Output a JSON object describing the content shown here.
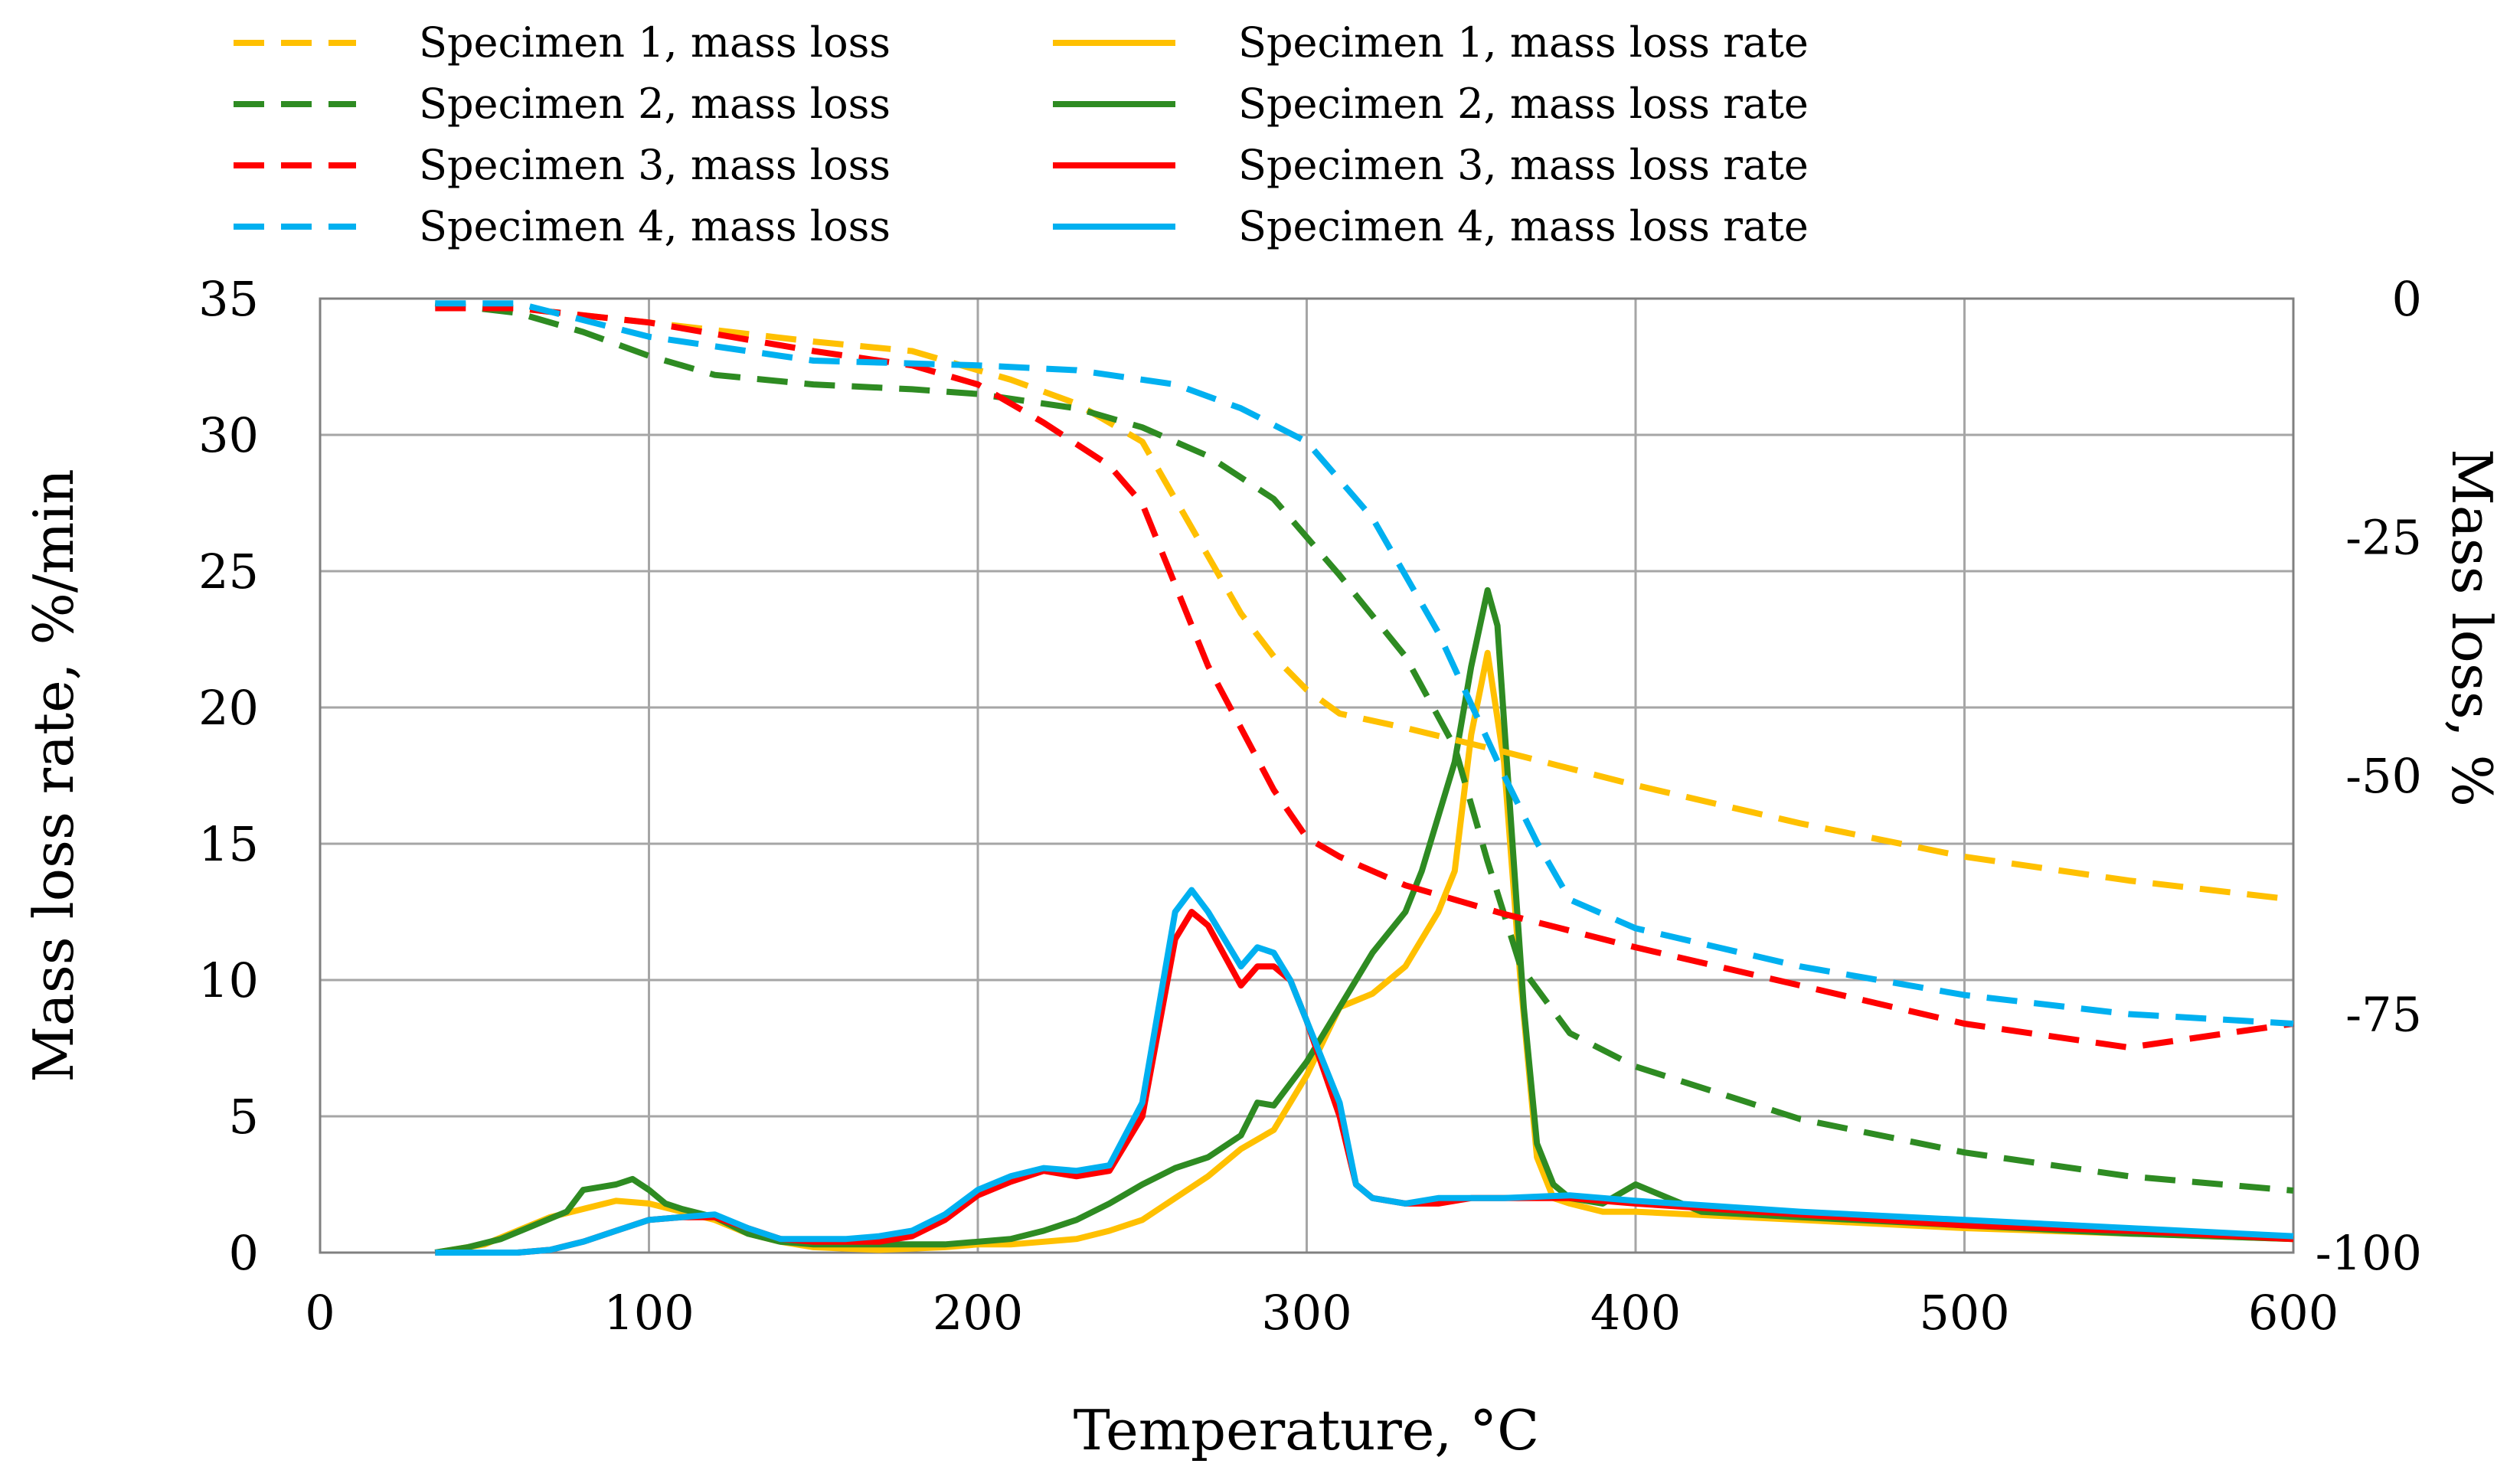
{
  "chart_data": {
    "type": "line",
    "xlabel": "Temperature, °C",
    "ylabel_left": "Mass loss rate, %/min",
    "ylabel_right": "Mass loss, %",
    "xlim": [
      0,
      600
    ],
    "ylim_left": [
      0,
      35
    ],
    "ylim_right": [
      -100,
      0
    ],
    "x_ticks": [
      "0",
      "100",
      "200",
      "300",
      "400",
      "500",
      "600"
    ],
    "y_left_ticks": [
      "0",
      "5",
      "10",
      "15",
      "20",
      "25",
      "30",
      "35"
    ],
    "y_right_ticks": [
      "-100",
      "-75",
      "-50",
      "-25",
      "0"
    ],
    "grid": true,
    "legend_position": "top",
    "series": [
      {
        "name": "Specimen 1, mass loss",
        "axis": "right",
        "style": "dashed",
        "color": "#FFC000",
        "points": [
          [
            35,
            -0.5
          ],
          [
            60,
            -1
          ],
          [
            100,
            -2.5
          ],
          [
            150,
            -4.5
          ],
          [
            180,
            -5.5
          ],
          [
            210,
            -8.5
          ],
          [
            230,
            -11
          ],
          [
            250,
            -15
          ],
          [
            260,
            -21
          ],
          [
            270,
            -27
          ],
          [
            280,
            -33
          ],
          [
            290,
            -37.5
          ],
          [
            300,
            -41
          ],
          [
            310,
            -43.5
          ],
          [
            330,
            -45
          ],
          [
            360,
            -47.5
          ],
          [
            400,
            -51
          ],
          [
            450,
            -55
          ],
          [
            500,
            -58.5
          ],
          [
            550,
            -61
          ],
          [
            600,
            -63
          ]
        ]
      },
      {
        "name": "Specimen 2, mass loss",
        "axis": "right",
        "style": "dashed",
        "color": "#2E8B22",
        "points": [
          [
            35,
            -0.5
          ],
          [
            60,
            -1.5
          ],
          [
            80,
            -3.5
          ],
          [
            100,
            -6
          ],
          [
            120,
            -8
          ],
          [
            150,
            -9
          ],
          [
            180,
            -9.5
          ],
          [
            200,
            -10
          ],
          [
            230,
            -11.5
          ],
          [
            250,
            -13.5
          ],
          [
            270,
            -16.5
          ],
          [
            290,
            -21
          ],
          [
            310,
            -29
          ],
          [
            330,
            -37.5
          ],
          [
            345,
            -47
          ],
          [
            355,
            -59
          ],
          [
            365,
            -70
          ],
          [
            380,
            -77
          ],
          [
            400,
            -80.5
          ],
          [
            450,
            -86
          ],
          [
            500,
            -89.5
          ],
          [
            550,
            -92
          ],
          [
            600,
            -93.5
          ]
        ]
      },
      {
        "name": "Specimen 3, mass loss",
        "axis": "right",
        "style": "dashed",
        "color": "#FF0000",
        "points": [
          [
            35,
            -1
          ],
          [
            60,
            -1
          ],
          [
            100,
            -2.5
          ],
          [
            150,
            -5.5
          ],
          [
            180,
            -7
          ],
          [
            200,
            -9
          ],
          [
            220,
            -13
          ],
          [
            240,
            -17.5
          ],
          [
            250,
            -21.5
          ],
          [
            260,
            -30
          ],
          [
            270,
            -38.5
          ],
          [
            280,
            -45
          ],
          [
            290,
            -51.5
          ],
          [
            300,
            -56.5
          ],
          [
            310,
            -58.5
          ],
          [
            330,
            -61.5
          ],
          [
            360,
            -64.5
          ],
          [
            400,
            -68
          ],
          [
            450,
            -72
          ],
          [
            500,
            -76
          ],
          [
            550,
            -78.5
          ],
          [
            600,
            -76
          ]
        ]
      },
      {
        "name": "Specimen 4, mass loss",
        "axis": "right",
        "style": "dashed",
        "color": "#00B0F0",
        "points": [
          [
            35,
            -0.5
          ],
          [
            60,
            -0.5
          ],
          [
            100,
            -4
          ],
          [
            150,
            -6.5
          ],
          [
            200,
            -7
          ],
          [
            230,
            -7.5
          ],
          [
            260,
            -9
          ],
          [
            280,
            -11.5
          ],
          [
            300,
            -15
          ],
          [
            320,
            -23
          ],
          [
            340,
            -35
          ],
          [
            360,
            -50
          ],
          [
            370,
            -57
          ],
          [
            380,
            -63
          ],
          [
            400,
            -66
          ],
          [
            450,
            -70
          ],
          [
            500,
            -73
          ],
          [
            550,
            -75
          ],
          [
            600,
            -76
          ]
        ]
      },
      {
        "name": "Specimen 1, mass loss rate",
        "axis": "left",
        "style": "solid",
        "color": "#FFC000",
        "points": [
          [
            35,
            0
          ],
          [
            50,
            0.3
          ],
          [
            60,
            0.8
          ],
          [
            70,
            1.3
          ],
          [
            80,
            1.6
          ],
          [
            90,
            1.9
          ],
          [
            100,
            1.8
          ],
          [
            110,
            1.5
          ],
          [
            120,
            1.2
          ],
          [
            130,
            0.7
          ],
          [
            140,
            0.4
          ],
          [
            150,
            0.2
          ],
          [
            160,
            0.15
          ],
          [
            170,
            0.1
          ],
          [
            180,
            0.15
          ],
          [
            190,
            0.2
          ],
          [
            200,
            0.3
          ],
          [
            210,
            0.3
          ],
          [
            220,
            0.4
          ],
          [
            230,
            0.5
          ],
          [
            240,
            0.8
          ],
          [
            250,
            1.2
          ],
          [
            260,
            2
          ],
          [
            270,
            2.8
          ],
          [
            280,
            3.8
          ],
          [
            290,
            4.5
          ],
          [
            300,
            6.5
          ],
          [
            310,
            9
          ],
          [
            320,
            9.5
          ],
          [
            330,
            10.5
          ],
          [
            340,
            12.5
          ],
          [
            345,
            14
          ],
          [
            350,
            19
          ],
          [
            355,
            22
          ],
          [
            360,
            18
          ],
          [
            365,
            10
          ],
          [
            370,
            3.5
          ],
          [
            375,
            2
          ],
          [
            380,
            1.8
          ],
          [
            390,
            1.5
          ],
          [
            400,
            1.5
          ],
          [
            450,
            1.2
          ],
          [
            500,
            0.9
          ],
          [
            550,
            0.7
          ],
          [
            600,
            0.5
          ]
        ]
      },
      {
        "name": "Specimen 2, mass loss rate",
        "axis": "left",
        "style": "solid",
        "color": "#2E8B22",
        "points": [
          [
            35,
            0
          ],
          [
            45,
            0.2
          ],
          [
            55,
            0.5
          ],
          [
            65,
            1
          ],
          [
            75,
            1.5
          ],
          [
            80,
            2.3
          ],
          [
            85,
            2.4
          ],
          [
            90,
            2.5
          ],
          [
            95,
            2.7
          ],
          [
            100,
            2.3
          ],
          [
            105,
            1.8
          ],
          [
            110,
            1.6
          ],
          [
            120,
            1.3
          ],
          [
            130,
            0.7
          ],
          [
            140,
            0.4
          ],
          [
            150,
            0.3
          ],
          [
            160,
            0.3
          ],
          [
            170,
            0.3
          ],
          [
            180,
            0.3
          ],
          [
            190,
            0.3
          ],
          [
            200,
            0.4
          ],
          [
            210,
            0.5
          ],
          [
            220,
            0.8
          ],
          [
            230,
            1.2
          ],
          [
            240,
            1.8
          ],
          [
            250,
            2.5
          ],
          [
            260,
            3.1
          ],
          [
            270,
            3.5
          ],
          [
            280,
            4.3
          ],
          [
            285,
            5.5
          ],
          [
            290,
            5.4
          ],
          [
            300,
            7
          ],
          [
            310,
            9
          ],
          [
            320,
            11
          ],
          [
            330,
            12.5
          ],
          [
            335,
            14
          ],
          [
            340,
            16
          ],
          [
            345,
            18
          ],
          [
            350,
            21.5
          ],
          [
            355,
            24.3
          ],
          [
            358,
            23
          ],
          [
            362,
            16
          ],
          [
            366,
            9
          ],
          [
            370,
            4
          ],
          [
            375,
            2.5
          ],
          [
            380,
            2
          ],
          [
            390,
            1.8
          ],
          [
            400,
            2.5
          ],
          [
            410,
            2
          ],
          [
            420,
            1.5
          ],
          [
            450,
            1.3
          ],
          [
            500,
            1
          ],
          [
            550,
            0.7
          ],
          [
            600,
            0.5
          ]
        ]
      },
      {
        "name": "Specimen 3, mass loss rate",
        "axis": "left",
        "style": "solid",
        "color": "#FF0000",
        "points": [
          [
            35,
            0
          ],
          [
            45,
            0
          ],
          [
            55,
            0
          ],
          [
            60,
            0
          ],
          [
            70,
            0.1
          ],
          [
            80,
            0.4
          ],
          [
            90,
            0.8
          ],
          [
            100,
            1.2
          ],
          [
            110,
            1.3
          ],
          [
            120,
            1.3
          ],
          [
            130,
            0.9
          ],
          [
            140,
            0.5
          ],
          [
            150,
            0.4
          ],
          [
            160,
            0.4
          ],
          [
            170,
            0.4
          ],
          [
            180,
            0.6
          ],
          [
            190,
            1.2
          ],
          [
            200,
            2.1
          ],
          [
            210,
            2.6
          ],
          [
            220,
            3
          ],
          [
            230,
            2.8
          ],
          [
            240,
            3
          ],
          [
            250,
            5
          ],
          [
            260,
            11.5
          ],
          [
            265,
            12.5
          ],
          [
            270,
            12
          ],
          [
            280,
            9.8
          ],
          [
            285,
            10.5
          ],
          [
            290,
            10.5
          ],
          [
            295,
            10
          ],
          [
            300,
            8.5
          ],
          [
            310,
            5
          ],
          [
            315,
            2.5
          ],
          [
            320,
            2
          ],
          [
            330,
            1.8
          ],
          [
            340,
            1.8
          ],
          [
            350,
            2
          ],
          [
            360,
            2
          ],
          [
            380,
            2
          ],
          [
            400,
            1.8
          ],
          [
            450,
            1.4
          ],
          [
            500,
            1
          ],
          [
            550,
            0.8
          ],
          [
            600,
            0.5
          ]
        ]
      },
      {
        "name": "Specimen 4, mass loss rate",
        "axis": "left",
        "style": "solid",
        "color": "#00B0F0",
        "points": [
          [
            35,
            0
          ],
          [
            45,
            0
          ],
          [
            55,
            0
          ],
          [
            60,
            0
          ],
          [
            70,
            0.1
          ],
          [
            80,
            0.4
          ],
          [
            90,
            0.8
          ],
          [
            100,
            1.2
          ],
          [
            110,
            1.3
          ],
          [
            120,
            1.4
          ],
          [
            130,
            0.9
          ],
          [
            140,
            0.5
          ],
          [
            150,
            0.5
          ],
          [
            160,
            0.5
          ],
          [
            170,
            0.6
          ],
          [
            180,
            0.8
          ],
          [
            190,
            1.4
          ],
          [
            200,
            2.3
          ],
          [
            210,
            2.8
          ],
          [
            220,
            3.1
          ],
          [
            230,
            3
          ],
          [
            240,
            3.2
          ],
          [
            250,
            5.5
          ],
          [
            260,
            12.5
          ],
          [
            265,
            13.3
          ],
          [
            270,
            12.5
          ],
          [
            280,
            10.5
          ],
          [
            285,
            11.2
          ],
          [
            290,
            11
          ],
          [
            295,
            10
          ],
          [
            300,
            8.5
          ],
          [
            310,
            5.5
          ],
          [
            315,
            2.5
          ],
          [
            320,
            2
          ],
          [
            330,
            1.8
          ],
          [
            340,
            2
          ],
          [
            350,
            2
          ],
          [
            360,
            2
          ],
          [
            380,
            2.1
          ],
          [
            400,
            1.9
          ],
          [
            450,
            1.5
          ],
          [
            500,
            1.2
          ],
          [
            550,
            0.9
          ],
          [
            600,
            0.6
          ]
        ]
      }
    ]
  }
}
